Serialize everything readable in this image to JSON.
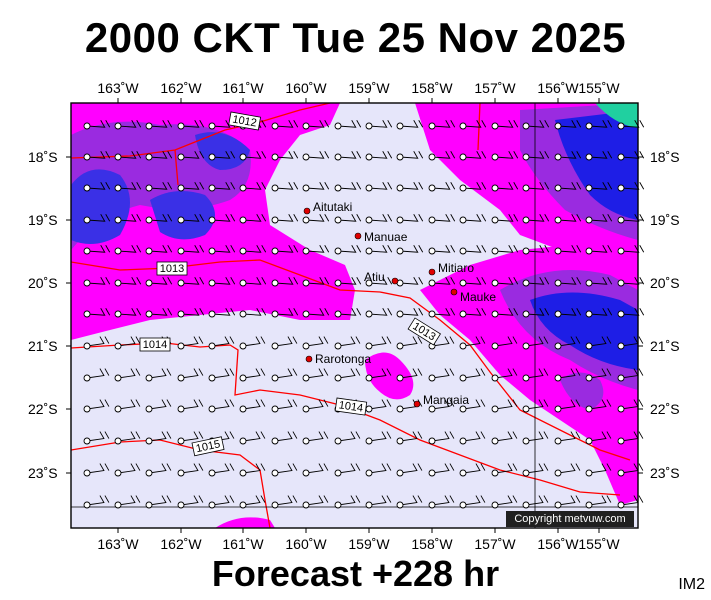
{
  "title": "2000 CKT Tue 25 Nov 2025",
  "footer": "Forecast +228 hr",
  "image_code": "IM2",
  "copyright": "Copyright metvuw.com",
  "lon_labels": [
    "163˚W",
    "162˚W",
    "161˚W",
    "160˚W",
    "159˚W",
    "158˚W",
    "157˚W",
    "156˚W",
    "155˚W"
  ],
  "lat_labels": [
    "18˚S",
    "19˚S",
    "20˚S",
    "21˚S",
    "22˚S",
    "23˚S"
  ],
  "isobar_labels": [
    "1012",
    "1013",
    "1013",
    "1014",
    "1014",
    "1015"
  ],
  "places": [
    {
      "name": "Aitutaki"
    },
    {
      "name": "Manuae"
    },
    {
      "name": "Atiu"
    },
    {
      "name": "Mitiaro"
    },
    {
      "name": "Mauke"
    },
    {
      "name": "Rarotonga"
    },
    {
      "name": "Mangaia"
    }
  ],
  "colors": {
    "background": "#e6e6fa",
    "rain_light": "#ff00ff",
    "rain_medium": "#9a2be0",
    "rain_heavy": "#2a2ae0",
    "rain_very_heavy": "#0000c8",
    "isobar": "#ff0000",
    "island": "#e00000"
  }
}
